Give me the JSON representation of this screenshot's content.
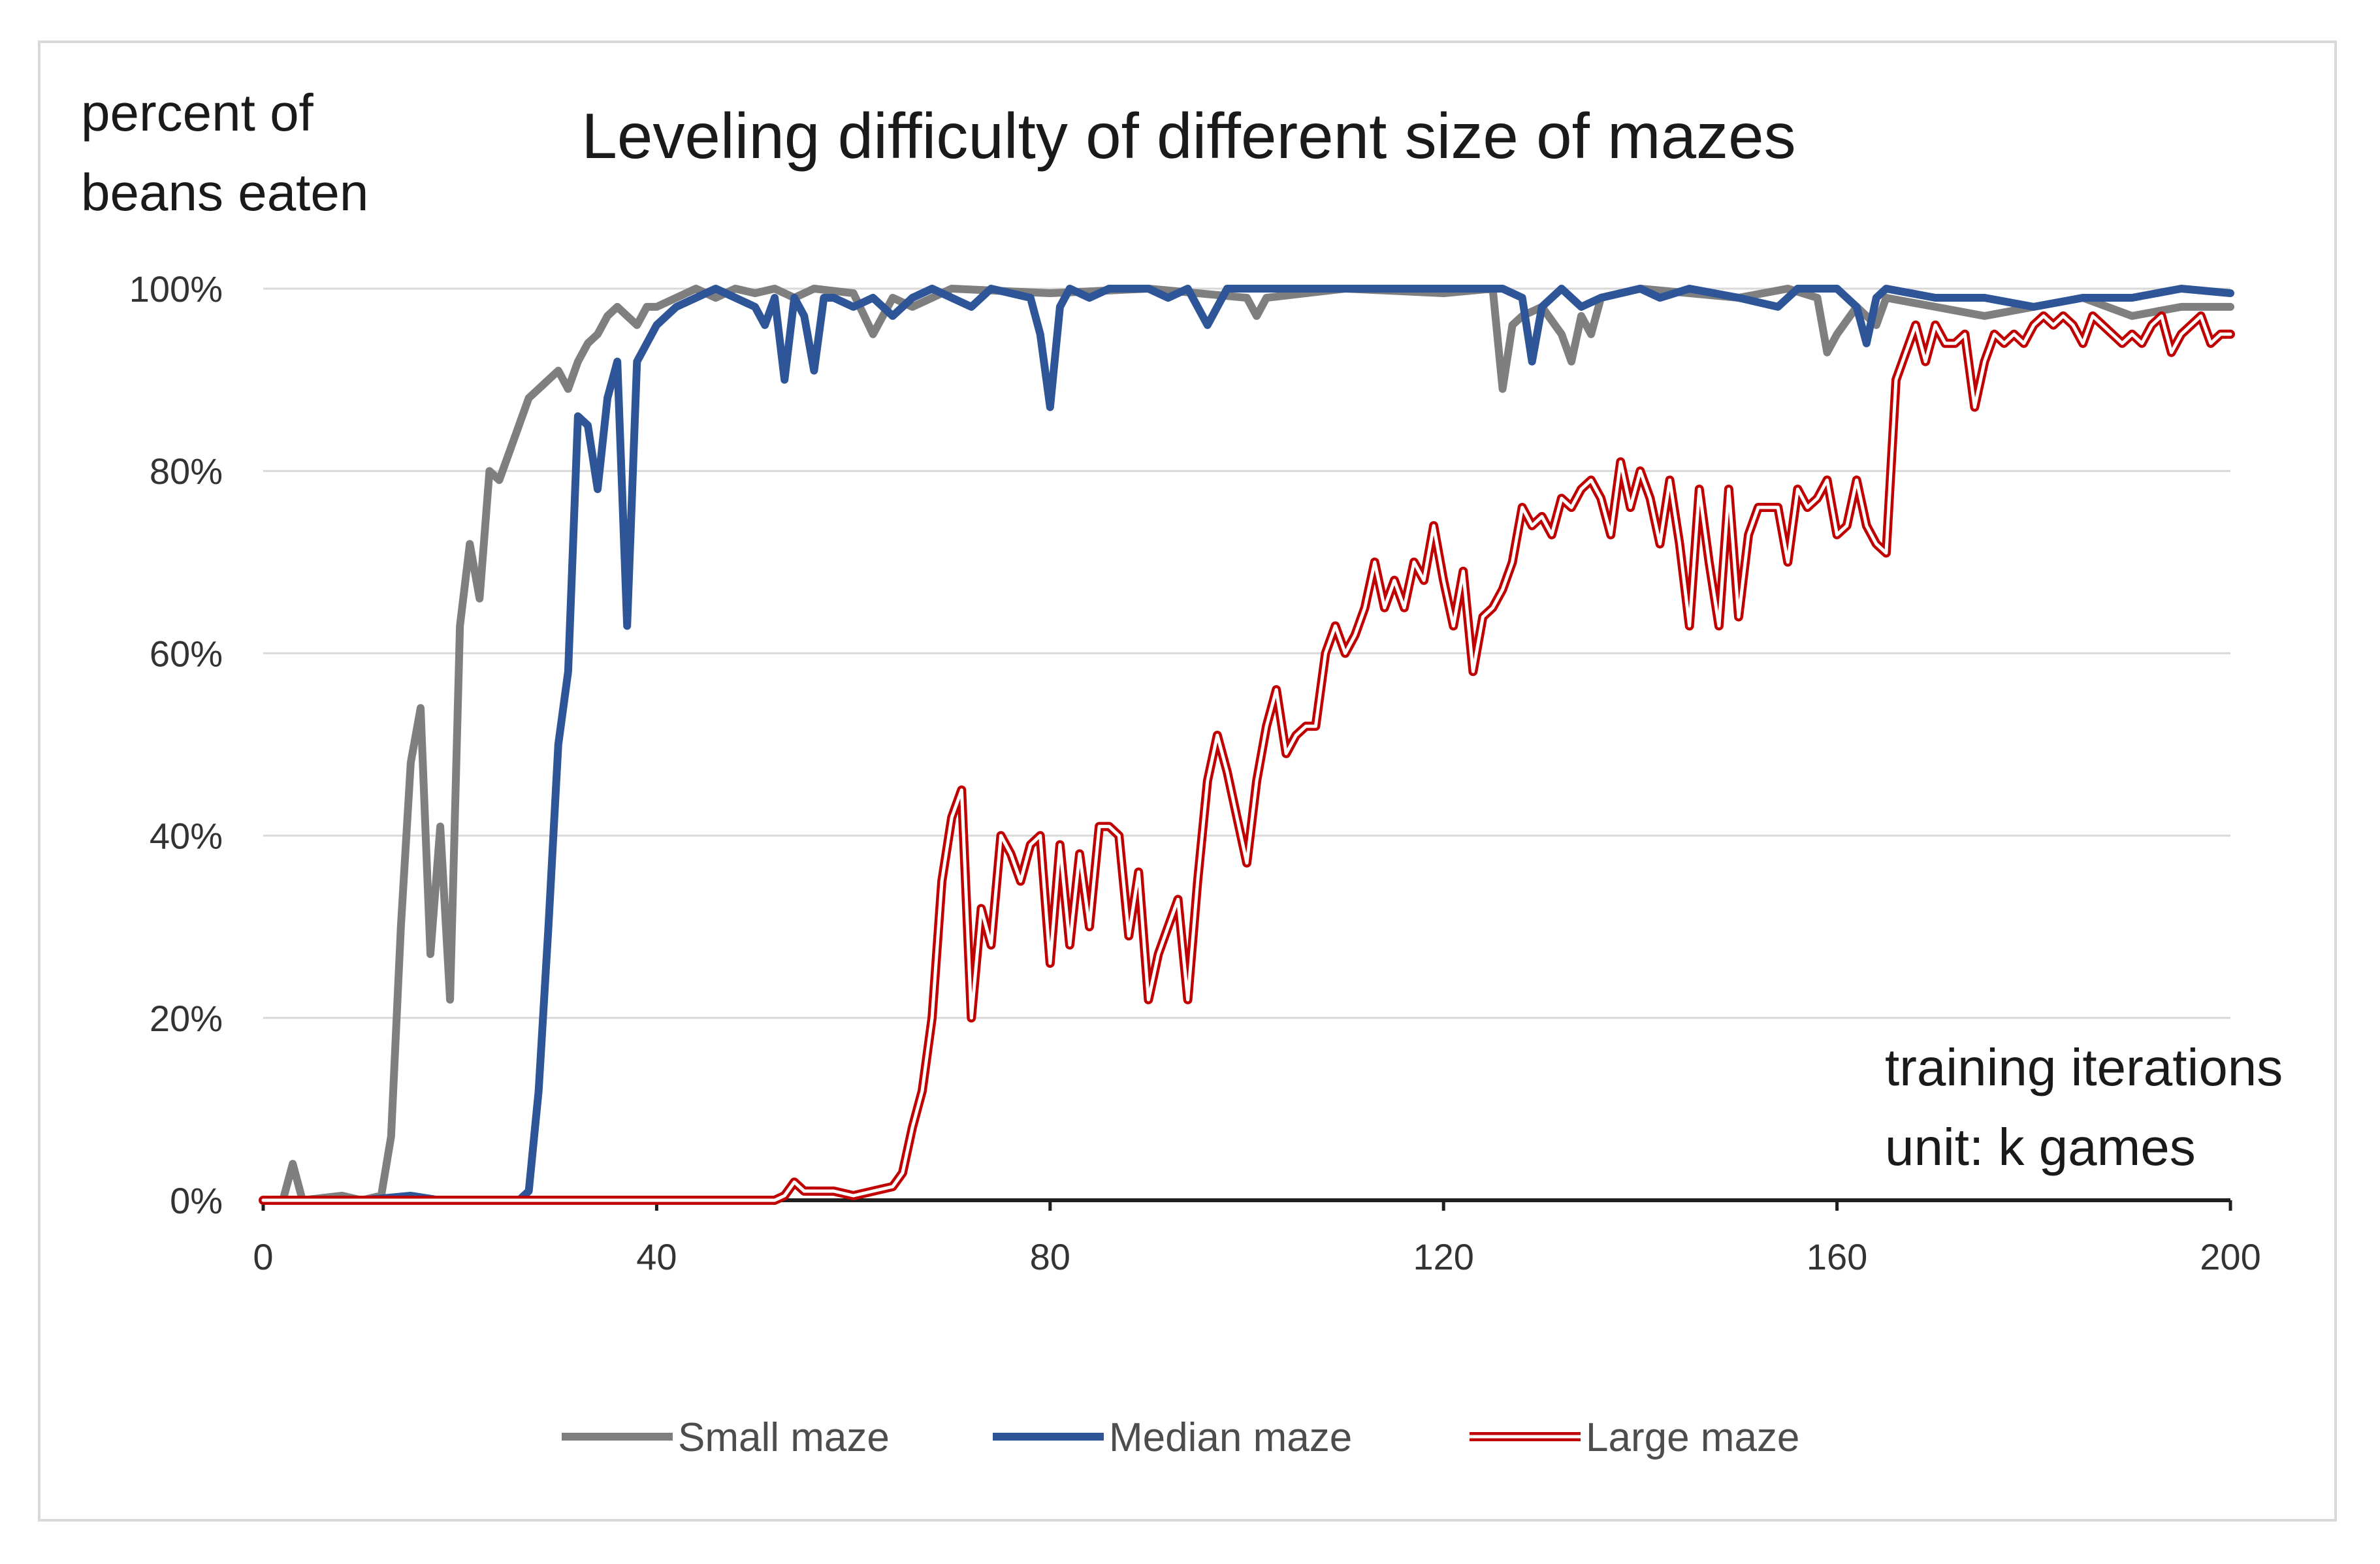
{
  "chart_data": {
    "type": "line",
    "title": "Leveling difficulty of different size of mazes",
    "ylabel_lines": [
      "percent of",
      "beans eaten"
    ],
    "xlabel_lines": [
      "training iterations",
      "unit: k games"
    ],
    "xlim": [
      0,
      200
    ],
    "ylim": [
      0,
      100
    ],
    "x_ticks": [
      0,
      40,
      80,
      120,
      160,
      200
    ],
    "x_tick_labels": [
      "0",
      "40",
      "80",
      "120",
      "160",
      "200"
    ],
    "y_ticks": [
      0,
      20,
      40,
      60,
      80,
      100
    ],
    "y_tick_labels": [
      "0%",
      "20%",
      "40%",
      "60%",
      "80%",
      "100%"
    ],
    "grid": true,
    "legend_position": "bottom",
    "series": [
      {
        "name": "Small maze",
        "color": "#7f7f7f",
        "style": "solid",
        "points": [
          [
            0,
            0
          ],
          [
            2,
            0
          ],
          [
            3,
            4
          ],
          [
            4,
            0
          ],
          [
            8,
            0.5
          ],
          [
            10,
            0
          ],
          [
            12,
            0.5
          ],
          [
            13,
            7
          ],
          [
            14,
            30
          ],
          [
            15,
            48
          ],
          [
            16,
            54
          ],
          [
            17,
            27
          ],
          [
            18,
            41
          ],
          [
            19,
            22
          ],
          [
            20,
            63
          ],
          [
            21,
            72
          ],
          [
            22,
            66
          ],
          [
            23,
            80
          ],
          [
            24,
            79
          ],
          [
            25,
            82
          ],
          [
            26,
            85
          ],
          [
            27,
            88
          ],
          [
            28,
            89
          ],
          [
            29,
            90
          ],
          [
            30,
            91
          ],
          [
            31,
            89
          ],
          [
            32,
            92
          ],
          [
            33,
            94
          ],
          [
            34,
            95
          ],
          [
            35,
            97
          ],
          [
            36,
            98
          ],
          [
            37,
            97
          ],
          [
            38,
            96
          ],
          [
            39,
            98
          ],
          [
            40,
            98
          ],
          [
            42,
            99
          ],
          [
            44,
            100
          ],
          [
            46,
            99
          ],
          [
            48,
            100
          ],
          [
            50,
            99.5
          ],
          [
            52,
            100
          ],
          [
            54,
            99
          ],
          [
            56,
            100
          ],
          [
            60,
            99.5
          ],
          [
            62,
            95
          ],
          [
            64,
            99
          ],
          [
            66,
            98
          ],
          [
            70,
            100
          ],
          [
            80,
            99.5
          ],
          [
            90,
            100
          ],
          [
            100,
            99
          ],
          [
            101,
            97
          ],
          [
            102,
            99
          ],
          [
            110,
            100
          ],
          [
            120,
            99.5
          ],
          [
            125,
            100
          ],
          [
            126,
            89
          ],
          [
            127,
            96
          ],
          [
            128,
            97
          ],
          [
            130,
            98
          ],
          [
            132,
            95
          ],
          [
            133,
            92
          ],
          [
            134,
            97
          ],
          [
            135,
            95
          ],
          [
            136,
            99
          ],
          [
            140,
            100
          ],
          [
            150,
            99
          ],
          [
            155,
            100
          ],
          [
            158,
            99
          ],
          [
            159,
            93
          ],
          [
            160,
            95
          ],
          [
            162,
            98
          ],
          [
            164,
            96
          ],
          [
            165,
            99
          ],
          [
            170,
            98
          ],
          [
            175,
            97
          ],
          [
            180,
            98
          ],
          [
            185,
            99
          ],
          [
            190,
            97
          ],
          [
            195,
            98
          ],
          [
            200,
            98
          ]
        ]
      },
      {
        "name": "Median maze",
        "color": "#2e5597",
        "style": "solid",
        "points": [
          [
            0,
            0
          ],
          [
            10,
            0
          ],
          [
            15,
            0.5
          ],
          [
            18,
            0
          ],
          [
            26,
            0
          ],
          [
            27,
            1
          ],
          [
            28,
            12
          ],
          [
            29,
            30
          ],
          [
            30,
            50
          ],
          [
            31,
            58
          ],
          [
            32,
            86
          ],
          [
            33,
            85
          ],
          [
            34,
            78
          ],
          [
            35,
            88
          ],
          [
            36,
            92
          ],
          [
            37,
            63
          ],
          [
            38,
            92
          ],
          [
            39,
            94
          ],
          [
            40,
            96
          ],
          [
            42,
            98
          ],
          [
            44,
            99
          ],
          [
            46,
            100
          ],
          [
            48,
            99
          ],
          [
            50,
            98
          ],
          [
            51,
            96
          ],
          [
            52,
            99
          ],
          [
            53,
            90
          ],
          [
            54,
            99
          ],
          [
            55,
            97
          ],
          [
            56,
            91
          ],
          [
            57,
            99
          ],
          [
            58,
            99
          ],
          [
            60,
            98
          ],
          [
            62,
            99
          ],
          [
            64,
            97
          ],
          [
            66,
            99
          ],
          [
            68,
            100
          ],
          [
            70,
            99
          ],
          [
            72,
            98
          ],
          [
            74,
            100
          ],
          [
            78,
            99
          ],
          [
            79,
            95
          ],
          [
            80,
            87
          ],
          [
            81,
            98
          ],
          [
            82,
            100
          ],
          [
            84,
            99
          ],
          [
            86,
            100
          ],
          [
            90,
            100
          ],
          [
            92,
            99
          ],
          [
            94,
            100
          ],
          [
            96,
            96
          ],
          [
            98,
            100
          ],
          [
            100,
            100
          ],
          [
            110,
            100
          ],
          [
            120,
            100
          ],
          [
            126,
            100
          ],
          [
            128,
            99
          ],
          [
            129,
            92
          ],
          [
            130,
            98
          ],
          [
            132,
            100
          ],
          [
            134,
            98
          ],
          [
            136,
            99
          ],
          [
            140,
            100
          ],
          [
            142,
            99
          ],
          [
            145,
            100
          ],
          [
            150,
            99
          ],
          [
            154,
            98
          ],
          [
            156,
            100
          ],
          [
            160,
            100
          ],
          [
            162,
            98
          ],
          [
            163,
            94
          ],
          [
            164,
            99
          ],
          [
            165,
            100
          ],
          [
            170,
            99
          ],
          [
            175,
            99
          ],
          [
            180,
            98
          ],
          [
            185,
            99
          ],
          [
            190,
            99
          ],
          [
            195,
            100
          ],
          [
            200,
            99.5
          ]
        ]
      },
      {
        "name": "Large maze",
        "color": "#c00000",
        "style": "double",
        "points": [
          [
            0,
            0
          ],
          [
            40,
            0
          ],
          [
            52,
            0
          ],
          [
            53,
            0.5
          ],
          [
            54,
            2
          ],
          [
            55,
            1
          ],
          [
            58,
            1
          ],
          [
            60,
            0.5
          ],
          [
            62,
            1
          ],
          [
            64,
            1.5
          ],
          [
            65,
            3
          ],
          [
            66,
            8
          ],
          [
            67,
            12
          ],
          [
            68,
            20
          ],
          [
            69,
            35
          ],
          [
            70,
            42
          ],
          [
            71,
            45
          ],
          [
            72,
            20
          ],
          [
            73,
            32
          ],
          [
            74,
            28
          ],
          [
            75,
            40
          ],
          [
            76,
            38
          ],
          [
            77,
            35
          ],
          [
            78,
            39
          ],
          [
            79,
            40
          ],
          [
            80,
            26
          ],
          [
            81,
            39
          ],
          [
            82,
            28
          ],
          [
            83,
            38
          ],
          [
            84,
            30
          ],
          [
            85,
            41
          ],
          [
            86,
            41
          ],
          [
            87,
            40
          ],
          [
            88,
            29
          ],
          [
            89,
            36
          ],
          [
            90,
            22
          ],
          [
            91,
            27
          ],
          [
            92,
            30
          ],
          [
            93,
            33
          ],
          [
            94,
            22
          ],
          [
            95,
            35
          ],
          [
            96,
            46
          ],
          [
            97,
            51
          ],
          [
            98,
            47
          ],
          [
            99,
            42
          ],
          [
            100,
            37
          ],
          [
            101,
            46
          ],
          [
            102,
            52
          ],
          [
            103,
            56
          ],
          [
            104,
            49
          ],
          [
            105,
            51
          ],
          [
            106,
            52
          ],
          [
            107,
            52
          ],
          [
            108,
            60
          ],
          [
            109,
            63
          ],
          [
            110,
            60
          ],
          [
            111,
            62
          ],
          [
            112,
            65
          ],
          [
            113,
            70
          ],
          [
            114,
            65
          ],
          [
            115,
            68
          ],
          [
            116,
            65
          ],
          [
            117,
            70
          ],
          [
            118,
            68
          ],
          [
            119,
            74
          ],
          [
            120,
            68
          ],
          [
            121,
            63
          ],
          [
            122,
            69
          ],
          [
            123,
            58
          ],
          [
            124,
            64
          ],
          [
            125,
            65
          ],
          [
            126,
            67
          ],
          [
            127,
            70
          ],
          [
            128,
            76
          ],
          [
            129,
            74
          ],
          [
            130,
            75
          ],
          [
            131,
            73
          ],
          [
            132,
            77
          ],
          [
            133,
            76
          ],
          [
            134,
            78
          ],
          [
            135,
            79
          ],
          [
            136,
            77
          ],
          [
            137,
            73
          ],
          [
            138,
            81
          ],
          [
            139,
            76
          ],
          [
            140,
            80
          ],
          [
            141,
            77
          ],
          [
            142,
            72
          ],
          [
            143,
            79
          ],
          [
            144,
            72
          ],
          [
            145,
            63
          ],
          [
            146,
            78
          ],
          [
            147,
            70
          ],
          [
            148,
            63
          ],
          [
            149,
            78
          ],
          [
            150,
            64
          ],
          [
            151,
            73
          ],
          [
            152,
            76
          ],
          [
            153,
            76
          ],
          [
            154,
            76
          ],
          [
            155,
            70
          ],
          [
            156,
            78
          ],
          [
            157,
            76
          ],
          [
            158,
            77
          ],
          [
            159,
            79
          ],
          [
            160,
            73
          ],
          [
            161,
            74
          ],
          [
            162,
            79
          ],
          [
            163,
            74
          ],
          [
            164,
            72
          ],
          [
            165,
            71
          ],
          [
            166,
            90
          ],
          [
            167,
            93
          ],
          [
            168,
            96
          ],
          [
            169,
            92
          ],
          [
            170,
            96
          ],
          [
            171,
            94
          ],
          [
            172,
            94
          ],
          [
            173,
            95
          ],
          [
            174,
            87
          ],
          [
            175,
            92
          ],
          [
            176,
            95
          ],
          [
            177,
            94
          ],
          [
            178,
            95
          ],
          [
            179,
            94
          ],
          [
            180,
            96
          ],
          [
            181,
            97
          ],
          [
            182,
            96
          ],
          [
            183,
            97
          ],
          [
            184,
            96
          ],
          [
            185,
            94
          ],
          [
            186,
            97
          ],
          [
            187,
            96
          ],
          [
            188,
            95
          ],
          [
            189,
            94
          ],
          [
            190,
            95
          ],
          [
            191,
            94
          ],
          [
            192,
            96
          ],
          [
            193,
            97
          ],
          [
            194,
            93
          ],
          [
            195,
            95
          ],
          [
            196,
            96
          ],
          [
            197,
            97
          ],
          [
            198,
            94
          ],
          [
            199,
            95
          ],
          [
            200,
            95
          ]
        ]
      }
    ]
  }
}
